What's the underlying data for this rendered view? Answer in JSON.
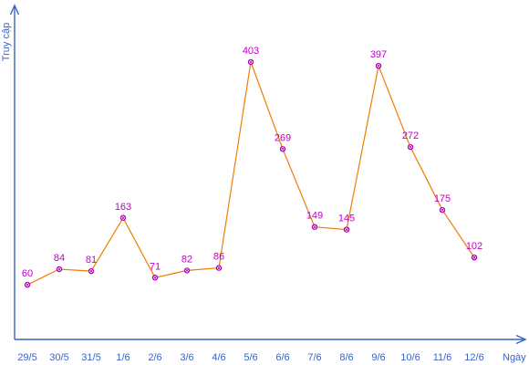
{
  "chart_data": {
    "type": "line",
    "title": "",
    "xlabel": "Ngày",
    "ylabel": "Truy cập",
    "categories": [
      "29/5",
      "30/5",
      "31/5",
      "1/6",
      "2/6",
      "3/6",
      "4/6",
      "5/6",
      "6/6",
      "7/6",
      "8/6",
      "9/6",
      "10/6",
      "11/6",
      "12/6"
    ],
    "values": [
      60,
      84,
      81,
      163,
      71,
      82,
      86,
      403,
      269,
      149,
      145,
      397,
      272,
      175,
      102
    ],
    "ylim": [
      -50,
      430
    ],
    "grid": false,
    "legend": "none",
    "show_data_labels": true,
    "colors": {
      "axis": "#3a63c7",
      "line": "#ee7d00",
      "marker": "#b000b8",
      "label": "#c000c8"
    }
  }
}
